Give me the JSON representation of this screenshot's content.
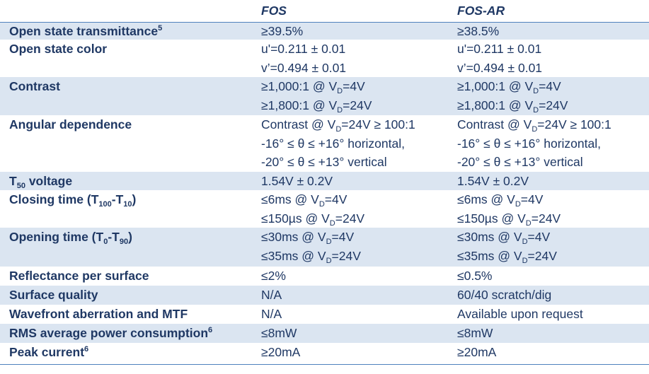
{
  "header": {
    "col1": "FOS",
    "col2": "FOS-AR"
  },
  "rows": {
    "r0": {
      "label": "Open state transmittance",
      "label_sup": "5",
      "fos": "≥39.5%",
      "ar": "≥38.5%"
    },
    "r1": {
      "label": "Open state color",
      "fos1": "u'=0.211 ± 0.01",
      "fos2": "v’=0.494 ± 0.01",
      "ar1": "u'=0.211 ± 0.01",
      "ar2": "v’=0.494 ± 0.01"
    },
    "r2": {
      "label": "Contrast",
      "fos1a": "≥1,000:1 @ V",
      "fos1s": "D",
      "fos1b": "=4V",
      "fos2a": "≥1,800:1 @ V",
      "fos2s": "D",
      "fos2b": "=24V",
      "ar1a": "≥1,000:1 @ V",
      "ar1s": "D",
      "ar1b": "=4V",
      "ar2a": "≥1,800:1 @ V",
      "ar2s": "D",
      "ar2b": "=24V"
    },
    "r3": {
      "label": "Angular dependence",
      "fos1a": "Contrast @ V",
      "fos1s": "D",
      "fos1b": "=24V ≥ 100:1",
      "fos2": "-16° ≤ θ ≤ +16° horizontal,",
      "fos3": "-20° ≤ θ ≤ +13° vertical",
      "ar1a": "Contrast @ V",
      "ar1s": "D",
      "ar1b": "=24V ≥ 100:1",
      "ar2": "-16° ≤ θ ≤ +16° horizontal,",
      "ar3": "-20° ≤ θ ≤ +13° vertical"
    },
    "r4": {
      "label_a": "T",
      "label_s": "50",
      "label_b": " voltage",
      "fos": "1.54V ± 0.2V",
      "ar": "1.54V ± 0.2V"
    },
    "r5": {
      "label_a": "Closing time (T",
      "label_s1": "100",
      "label_m": "-T",
      "label_s2": "10",
      "label_b": ")",
      "fos1a": "≤6ms @ V",
      "fos1s": "D",
      "fos1b": "=4V",
      "fos2a": "≤150µs @ V",
      "fos2s": "D",
      "fos2b": "=24V",
      "ar1a": "≤6ms @ V",
      "ar1s": "D",
      "ar1b": "=4V",
      "ar2a": "≤150µs @ V",
      "ar2s": "D",
      "ar2b": "=24V"
    },
    "r6": {
      "label_a": "Opening time (T",
      "label_s1": "0",
      "label_m": "-T",
      "label_s2": "90",
      "label_b": ")",
      "fos1a": "≤30ms @ V",
      "fos1s": "D",
      "fos1b": "=4V",
      "fos2a": "≤35ms @ V",
      "fos2s": "D",
      "fos2b": "=24V",
      "ar1a": "≤30ms @ V",
      "ar1s": "D",
      "ar1b": "=4V",
      "ar2a": "≤35ms @ V",
      "ar2s": "D",
      "ar2b": "=24V"
    },
    "r7": {
      "label": "Reflectance per surface",
      "fos": "≤2%",
      "ar": "≤0.5%"
    },
    "r8": {
      "label": "Surface quality",
      "fos": "N/A",
      "ar": "60/40 scratch/dig"
    },
    "r9": {
      "label": "Wavefront aberration and MTF",
      "fos": "N/A",
      "ar": "Available upon request"
    },
    "r10": {
      "label": "RMS average power consumption",
      "label_sup": "6",
      "fos": "≤8mW",
      "ar": "≤8mW"
    },
    "r11": {
      "label": "Peak current",
      "label_sup": "6",
      "fos": "≥20mA",
      "ar": "≥20mA"
    }
  }
}
